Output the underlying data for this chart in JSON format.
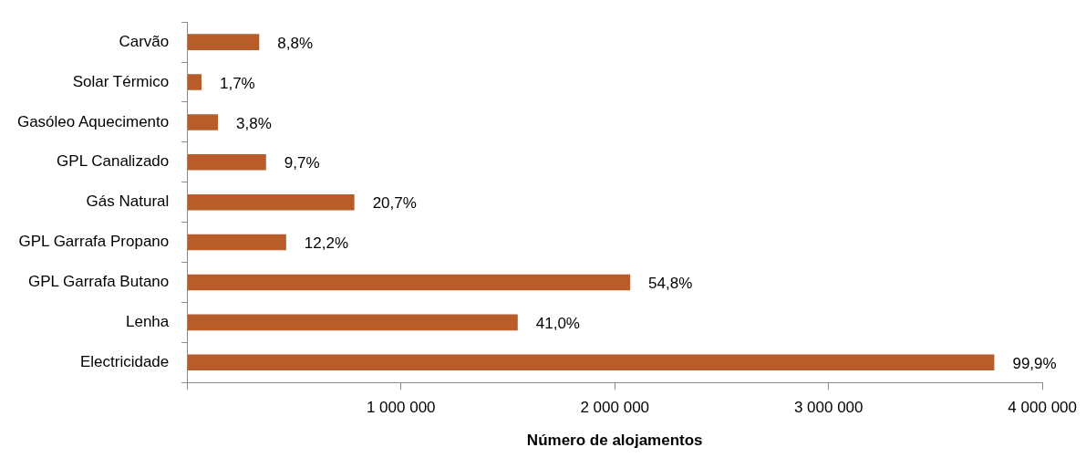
{
  "chart_data": {
    "type": "bar",
    "orientation": "horizontal",
    "xlabel": "Número de alojamentos",
    "categories": [
      "Carvão",
      "Solar Térmico",
      "Gasóleo Aquecimento",
      "GPL Canalizado",
      "Gás Natural",
      "GPL Garrafa Propano",
      "GPL Garrafa Butano",
      "Lenha",
      "Electricidade"
    ],
    "values": [
      337000,
      67000,
      144000,
      369000,
      782000,
      463000,
      2072000,
      1546000,
      3775000
    ],
    "annotations": [
      {
        "text": "8,8%",
        "x": 337000,
        "y": "Carvão"
      },
      {
        "text": "1,7%",
        "x": 67000,
        "y": "Solar Térmico"
      },
      {
        "text": "3,8%",
        "x": 144000,
        "y": "Gasóleo Aquecimento"
      },
      {
        "text": "9,7%",
        "x": 369000,
        "y": "GPL Canalizado"
      },
      {
        "text": "20,7%",
        "x": 782000,
        "y": "Gás Natural"
      },
      {
        "text": "12,2%",
        "x": 463000,
        "y": "GPL Garrafa Propano"
      },
      {
        "text": "54,8%",
        "x": 2072000,
        "y": "GPL Garrafa Butano"
      },
      {
        "text": "41,0%",
        "x": 1546000,
        "y": "Lenha"
      },
      {
        "text": "99,9%",
        "x": 3775000,
        "y": "Electricidade"
      }
    ],
    "color": "#b85c2a",
    "xlim": [
      0,
      4000000
    ],
    "xticks": [
      {
        "value": 0,
        "label": null
      },
      {
        "value": 1000000,
        "label": "1 000 000"
      },
      {
        "value": 2000000,
        "label": "2 000 000"
      },
      {
        "value": 3000000,
        "label": "3 000 000"
      },
      {
        "value": 4000000,
        "label": "4 000 000"
      }
    ],
    "grid": false,
    "legend": false
  }
}
